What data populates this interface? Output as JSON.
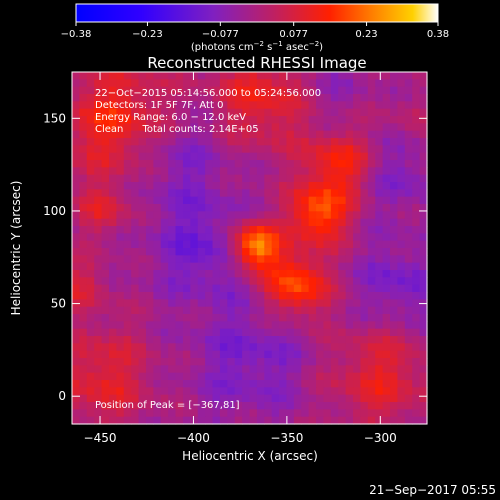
{
  "chart_data": {
    "type": "heatmap",
    "title": "Reconstructed RHESSI Image",
    "xlabel": "Heliocentric X (arcsec)",
    "ylabel": "Heliocentric Y (arcsec)",
    "xlim": [
      -465,
      -275
    ],
    "ylim": [
      -15,
      175
    ],
    "x_ticks": [
      -450,
      -400,
      -350,
      -300
    ],
    "y_ticks": [
      0,
      50,
      100,
      150
    ],
    "x_tick_labels": [
      "−450",
      "−400",
      "−350",
      "−300"
    ],
    "y_tick_labels": [
      "0",
      "50",
      "100",
      "150"
    ],
    "colorbar": {
      "range": [
        -0.38,
        0.38
      ],
      "ticks": [
        -0.38,
        -0.23,
        -0.077,
        0.077,
        0.23,
        0.38
      ],
      "tick_labels": [
        "−0.38",
        "−0.23",
        "−0.077",
        "0.077",
        "0.23",
        "0.38"
      ],
      "units_text": "(photons cm",
      "units_exp1": "−2",
      "units_mid": " s",
      "units_exp2": "−1",
      "units_end": " asec",
      "units_exp3": "−2",
      "units_close": ")"
    },
    "annotations": [
      "22−Oct−2015 05:14:56.000 to 05:24:56.000",
      "Detectors: 1F 5F 7F, Att 0",
      "Energy Range: 6.0 − 12.0 keV",
      "Clean      Total counts: 2.14E+05"
    ],
    "peak_label": "Position of Peak = [−367,81]",
    "peak": {
      "x": -367,
      "y": 81,
      "value": 0.38
    },
    "sources": [
      {
        "x": -367,
        "y": 81,
        "sigma": 9,
        "amp": 0.3
      },
      {
        "x": -333,
        "y": 98,
        "sigma": 11,
        "amp": 0.22
      },
      {
        "x": -345,
        "y": 60,
        "sigma": 12,
        "amp": 0.22
      },
      {
        "x": -322,
        "y": 125,
        "sigma": 13,
        "amp": 0.16
      },
      {
        "x": -440,
        "y": 148,
        "sigma": 22,
        "amp": 0.17
      },
      {
        "x": -362,
        "y": 162,
        "sigma": 20,
        "amp": 0.14
      },
      {
        "x": -448,
        "y": 100,
        "sigma": 10,
        "amp": 0.1
      },
      {
        "x": -450,
        "y": 10,
        "sigma": 20,
        "amp": 0.12
      },
      {
        "x": -300,
        "y": 10,
        "sigma": 20,
        "amp": 0.12
      },
      {
        "x": -460,
        "y": 60,
        "sigma": 10,
        "amp": 0.09
      },
      {
        "x": -285,
        "y": 150,
        "sigma": 12,
        "amp": 0.04
      }
    ],
    "sinks": [
      {
        "x": -395,
        "y": 80,
        "sigma": 18,
        "amp": -0.1
      },
      {
        "x": -410,
        "y": 130,
        "sigma": 20,
        "amp": -0.09
      },
      {
        "x": -370,
        "y": 20,
        "sigma": 22,
        "amp": -0.08
      },
      {
        "x": -290,
        "y": 60,
        "sigma": 15,
        "amp": -0.09
      },
      {
        "x": -290,
        "y": 120,
        "sigma": 15,
        "amp": -0.07
      },
      {
        "x": -330,
        "y": 165,
        "sigma": 15,
        "amp": -0.05
      }
    ],
    "background": -0.02,
    "colorscale": [
      "#0000ff",
      "#3000ff",
      "#8020c0",
      "#c02060",
      "#ff2000",
      "#ff8000",
      "#ffd000",
      "#ffffff"
    ]
  },
  "footer": {
    "timestamp": "21−Sep−2017 05:55"
  }
}
